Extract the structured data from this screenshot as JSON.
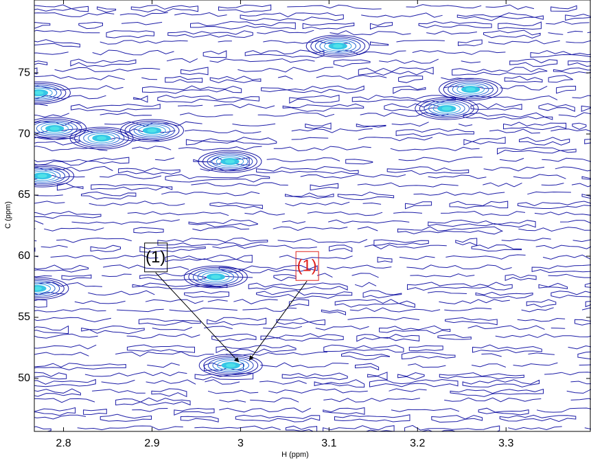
{
  "chart_data": {
    "type": "contour",
    "x_label": "H (ppm)",
    "y_label": "C (ppm)",
    "xlim": [
      2.767,
      3.396
    ],
    "ylim": [
      45.67,
      80.96
    ],
    "xticks": [
      2.8,
      2.9,
      3,
      3.1,
      3.2,
      3.3
    ],
    "yticks": [
      50,
      55,
      60,
      65,
      70,
      75
    ],
    "color": "#1a1aa6",
    "x": [
      3.11,
      3.233,
      3.26,
      2.9,
      2.843,
      2.79,
      2.988,
      2.772,
      2.776,
      2.972,
      2.989,
      2.77
    ],
    "y": [
      77.19,
      72.08,
      73.65,
      70.28,
      69.66,
      70.45,
      67.75,
      73.37,
      66.57,
      58.31,
      51.07,
      57.36
    ],
    "annotations": [
      {
        "text": "(1)",
        "color": "#000000",
        "x": 2.904,
        "y": 59.9,
        "target_x": 2.998,
        "target_y": 51.35
      },
      {
        "text": "(1)",
        "color": "#e0201c",
        "x": 3.075,
        "y": 59.2,
        "target_x": 3.01,
        "target_y": 51.5
      }
    ]
  }
}
